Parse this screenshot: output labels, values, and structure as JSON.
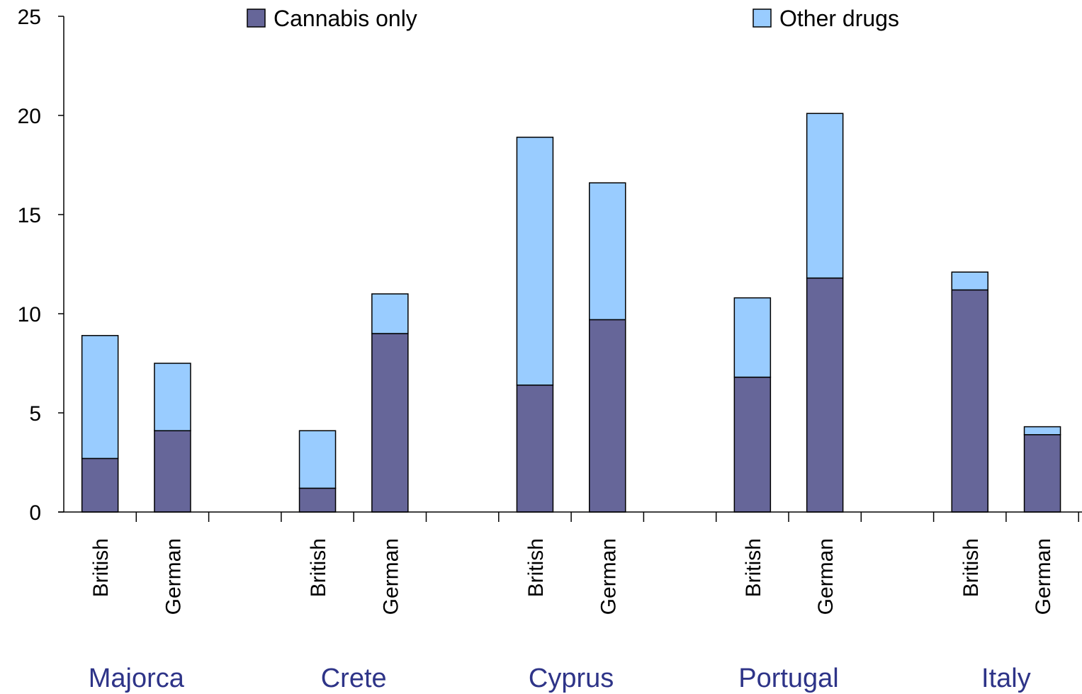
{
  "chart_data": {
    "type": "bar",
    "stacked": true,
    "title": "",
    "xlabel": "",
    "ylabel": "",
    "ylim": [
      0,
      25
    ],
    "yticks": [
      0,
      5,
      10,
      15,
      20,
      25
    ],
    "grid": false,
    "legend_position": "top",
    "groups": [
      "Majorca",
      "Crete",
      "Cyprus",
      "Portugal",
      "Italy"
    ],
    "categories": [
      "British",
      "German"
    ],
    "series": [
      {
        "name": "Cannabis only",
        "color": "#666699",
        "values": [
          [
            2.7,
            4.1
          ],
          [
            1.2,
            9.0
          ],
          [
            6.4,
            9.7
          ],
          [
            6.8,
            11.8
          ],
          [
            11.2,
            3.9
          ]
        ]
      },
      {
        "name": "Other drugs",
        "color": "#99ccff",
        "values": [
          [
            6.2,
            3.4
          ],
          [
            2.9,
            2.0
          ],
          [
            12.5,
            6.9
          ],
          [
            4.0,
            8.3
          ],
          [
            0.9,
            0.4
          ]
        ]
      }
    ]
  }
}
